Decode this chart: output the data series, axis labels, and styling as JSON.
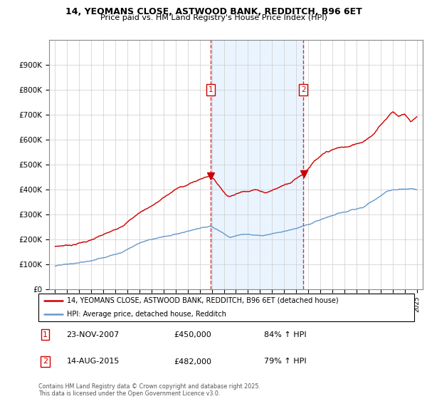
{
  "title1": "14, YEOMANS CLOSE, ASTWOOD BANK, REDDITCH, B96 6ET",
  "title2": "Price paid vs. HM Land Registry's House Price Index (HPI)",
  "legend_line1": "14, YEOMANS CLOSE, ASTWOOD BANK, REDDITCH, B96 6ET (detached house)",
  "legend_line2": "HPI: Average price, detached house, Redditch",
  "annotation1_date": "23-NOV-2007",
  "annotation1_price": "£450,000",
  "annotation1_hpi": "84% ↑ HPI",
  "annotation2_date": "14-AUG-2015",
  "annotation2_price": "£482,000",
  "annotation2_hpi": "79% ↑ HPI",
  "footer": "Contains HM Land Registry data © Crown copyright and database right 2025.\nThis data is licensed under the Open Government Licence v3.0.",
  "red_color": "#cc0000",
  "blue_color": "#6699cc",
  "bg_color": "#ffffff",
  "grid_color": "#cccccc",
  "shade_color": "#ddeeff",
  "sale1_year": 2007.9,
  "sale2_year": 2015.6,
  "ylim": [
    0,
    1000000
  ],
  "xlim_start": 1994.5,
  "xlim_end": 2025.5
}
